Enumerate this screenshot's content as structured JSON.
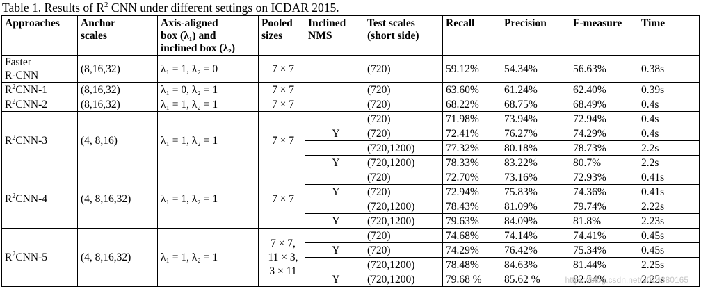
{
  "caption": {
    "prefix": "Table 1. Results of R",
    "sup": "2",
    "suffix": " CNN under different settings on ICDAR 2015."
  },
  "headers": {
    "approaches": "Approaches",
    "anchor_line1": "Anchor",
    "anchor_line2": "scales",
    "axis_line1": "Axis-aligned",
    "axis_line2": "box (λ₁) and",
    "axis_line3": "inclined box (λ₂)",
    "pooled_line1": "Pooled",
    "pooled_line2": "sizes",
    "nms_line1": "Inclined",
    "nms_line2": "NMS",
    "test_line1": "Test scales",
    "test_line2": "(short side)",
    "recall": "Recall",
    "precision": "Precision",
    "fmeasure": "F-measure",
    "time": "Time"
  },
  "groups": {
    "faster": {
      "name_line1": "Faster",
      "name_line2": "R-CNN",
      "anchor": "(8,16,32)",
      "lambda": "λ₁ = 1, λ₂ = 0",
      "pooled": "7 × 7",
      "rows": [
        {
          "nms": "",
          "test": "(720)",
          "recall": "59.12%",
          "precision": "54.34%",
          "fmeasure": "56.63%",
          "time": "0.38s"
        }
      ]
    },
    "r2cnn1": {
      "name_prefix": "R",
      "name_sup": "2",
      "name_suffix": "CNN-1",
      "anchor": "(8,16,32)",
      "lambda": "λ₁ = 0, λ₂ = 1",
      "pooled": "7 × 7",
      "rows": [
        {
          "nms": "",
          "test": "(720)",
          "recall": "63.60%",
          "precision": "61.24%",
          "fmeasure": "62.40%",
          "time": "0.39s"
        }
      ]
    },
    "r2cnn2": {
      "name_prefix": "R",
      "name_sup": "2",
      "name_suffix": "CNN-2",
      "anchor": "(8,16,32)",
      "lambda": "λ₁ = 1, λ₂ = 1",
      "pooled": "7 × 7",
      "rows": [
        {
          "nms": "",
          "test": "(720)",
          "recall": "68.22%",
          "precision": "68.75%",
          "fmeasure": "68.49%",
          "time": "0.4s"
        }
      ]
    },
    "r2cnn3": {
      "name_prefix": "R",
      "name_sup": "2",
      "name_suffix": "CNN-3",
      "anchor": "(4, 8,16)",
      "lambda": "λ₁ = 1, λ₂ = 1",
      "pooled": "7 × 7",
      "rows": [
        {
          "nms": "",
          "test": "(720)",
          "recall": "71.98%",
          "precision": "73.94%",
          "fmeasure": "72.94%",
          "time": "0.4s"
        },
        {
          "nms": "Y",
          "test": "(720)",
          "recall": "72.41%",
          "precision": "76.27%",
          "fmeasure": "74.29%",
          "time": "0.4s"
        },
        {
          "nms": "",
          "test": "(720,1200)",
          "recall": "77.32%",
          "precision": "80.18%",
          "fmeasure": "78.73%",
          "time": "2.2s"
        },
        {
          "nms": "Y",
          "test": "(720,1200)",
          "recall": "78.33%",
          "precision": "83.22%",
          "fmeasure": "80.7%",
          "time": "2.2s"
        }
      ]
    },
    "r2cnn4": {
      "name_prefix": "R",
      "name_sup": "2",
      "name_suffix": "CNN-4",
      "anchor": "(4, 8,16,32)",
      "lambda": "λ₁ = 1, λ₂ = 1",
      "pooled": "7 × 7",
      "rows": [
        {
          "nms": "",
          "test": "(720)",
          "recall": "72.70%",
          "precision": "73.16%",
          "fmeasure": "72.93%",
          "time": "0.41s"
        },
        {
          "nms": "Y",
          "test": "(720)",
          "recall": "72.94%",
          "precision": "75.83%",
          "fmeasure": "74.36%",
          "time": "0.41s"
        },
        {
          "nms": "",
          "test": "(720,1200)",
          "recall": "78.43%",
          "precision": "81.09%",
          "fmeasure": "79.74%",
          "time": "2.22s"
        },
        {
          "nms": "Y",
          "test": "(720,1200)",
          "recall": "79.63%",
          "precision": "84.09%",
          "fmeasure": "81.8%",
          "time": "2.23s"
        }
      ]
    },
    "r2cnn5": {
      "name_prefix": "R",
      "name_sup": "2",
      "name_suffix": "CNN-5",
      "anchor": "(4, 8,16,32)",
      "lambda": "λ₁ = 1, λ₂ = 1",
      "pooled_line1": "7 × 7,",
      "pooled_line2": "11 × 3,",
      "pooled_line3": "3 × 11",
      "rows": [
        {
          "nms": "",
          "test": "(720)",
          "recall": "74.68%",
          "precision": "74.14%",
          "fmeasure": "74.41%",
          "time": "0.45s"
        },
        {
          "nms": "Y",
          "test": "(720)",
          "recall": "74.29%",
          "precision": "76.42%",
          "fmeasure": "75.34%",
          "time": "0.45s"
        },
        {
          "nms": "",
          "test": "(720,1200)",
          "recall": "78.48%",
          "precision": "84.63%",
          "fmeasure": "81.44%",
          "time": "2.25s"
        },
        {
          "nms": "Y",
          "test": "(720,1200)",
          "recall": "79.68 %",
          "precision": "85.62 %",
          "fmeasure": "82.54%",
          "time": "2.25s"
        }
      ]
    }
  },
  "watermark": "https://blog.csdn.net/u014380165"
}
